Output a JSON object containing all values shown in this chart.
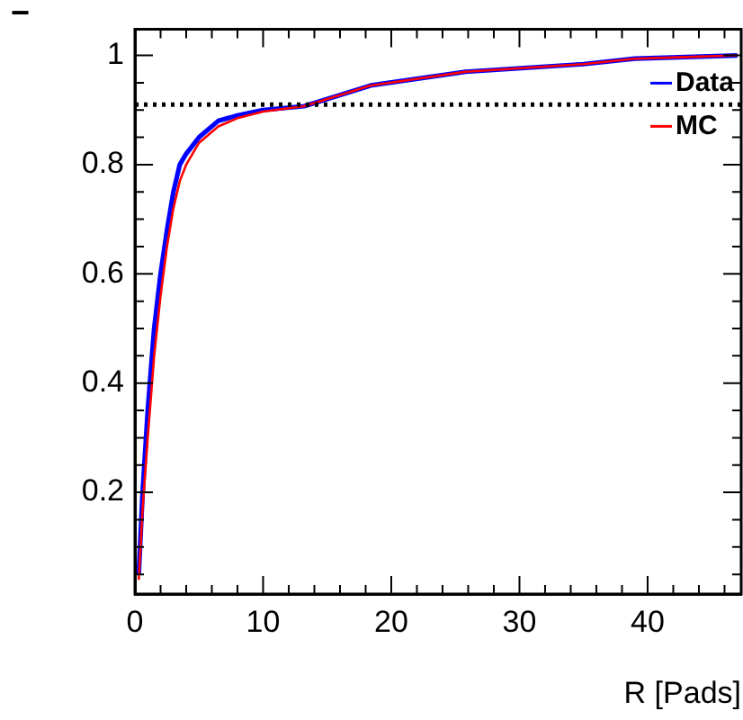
{
  "chart_data": {
    "type": "line",
    "xlabel": "R [Pads]",
    "ylabel": "−",
    "x": [
      0.3,
      0.6,
      1,
      1.5,
      2,
      2.5,
      3,
      3.5,
      4,
      5,
      6.5,
      8,
      10,
      13.2,
      18.4,
      25.8,
      35,
      39,
      43,
      47
    ],
    "series": [
      {
        "name": "Data",
        "color": "#0000ff",
        "values": [
          0.05,
          0.2,
          0.35,
          0.5,
          0.6,
          0.68,
          0.75,
          0.8,
          0.82,
          0.85,
          0.88,
          0.89,
          0.9,
          0.907,
          0.945,
          0.97,
          0.984,
          0.994,
          0.997,
          1.0
        ]
      },
      {
        "name": "MC",
        "color": "#ff0000",
        "values": [
          0.04,
          0.17,
          0.3,
          0.45,
          0.56,
          0.65,
          0.72,
          0.77,
          0.8,
          0.84,
          0.87,
          0.885,
          0.897,
          0.907,
          0.945,
          0.97,
          0.984,
          0.994,
          0.997,
          1.0
        ]
      }
    ],
    "xlim": [
      0,
      47.3
    ],
    "ylim": [
      0.014,
      1.048
    ],
    "xticks": [
      0,
      {
        "value": 2,
        "label": null
      },
      {
        "value": 4,
        "label": null
      },
      {
        "value": 6,
        "label": null
      },
      {
        "value": 8,
        "label": null
      },
      10,
      {
        "value": 12,
        "label": null
      },
      {
        "value": 14,
        "label": null
      },
      {
        "value": 16,
        "label": null
      },
      {
        "value": 18,
        "label": null
      },
      20,
      {
        "value": 22,
        "label": null
      },
      {
        "value": 24,
        "label": null
      },
      {
        "value": 26,
        "label": null
      },
      {
        "value": 28,
        "label": null
      },
      30,
      {
        "value": 32,
        "label": null
      },
      {
        "value": 34,
        "label": null
      },
      {
        "value": 36,
        "label": null
      },
      {
        "value": 38,
        "label": null
      },
      40,
      {
        "value": 42,
        "label": null
      },
      {
        "value": 44,
        "label": null
      },
      {
        "value": 46,
        "label": null
      }
    ],
    "yticks": [
      {
        "value": 0.05,
        "label": null
      },
      {
        "value": 0.1,
        "label": null
      },
      {
        "value": 0.15,
        "label": null
      },
      0.2,
      {
        "value": 0.25,
        "label": null
      },
      {
        "value": 0.3,
        "label": null
      },
      {
        "value": 0.35,
        "label": null
      },
      0.4,
      {
        "value": 0.45,
        "label": null
      },
      {
        "value": 0.5,
        "label": null
      },
      {
        "value": 0.55,
        "label": null
      },
      0.6,
      {
        "value": 0.65,
        "label": null
      },
      {
        "value": 0.7,
        "label": null
      },
      {
        "value": 0.75,
        "label": null
      },
      0.8,
      {
        "value": 0.85,
        "label": null
      },
      {
        "value": 0.9,
        "label": null
      },
      {
        "value": 0.95,
        "label": null
      },
      1
    ],
    "ref_lines": [
      {
        "axis": "y",
        "value": 0.91,
        "color": "#000000",
        "line_style": "dotted"
      }
    ],
    "grid": false,
    "legend": "top right",
    "marker": "none",
    "line_style": "solid"
  }
}
